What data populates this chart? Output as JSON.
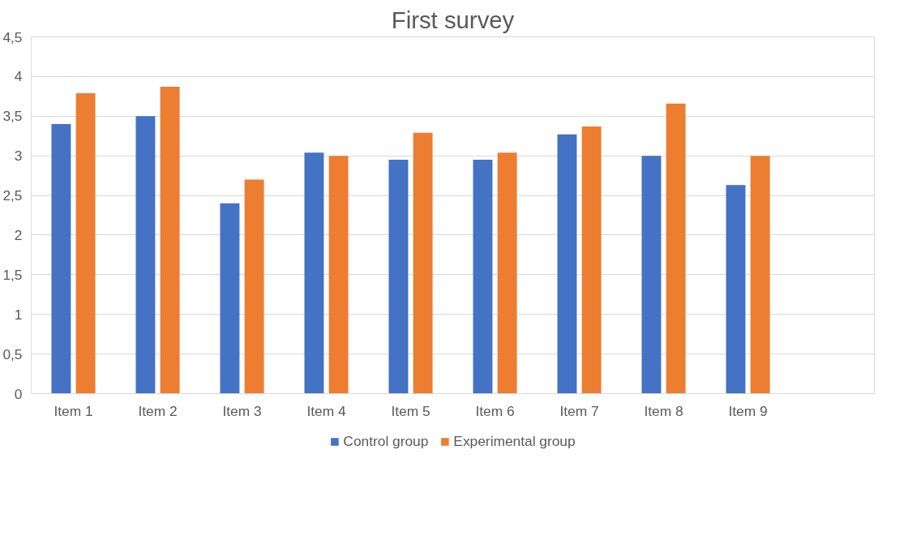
{
  "chart_data": {
    "type": "bar",
    "title": "First survey",
    "categories": [
      "Item 1",
      "Item 2",
      "Item 3",
      "Item 4",
      "Item 5",
      "Item 6",
      "Item 7",
      "Item 8",
      "Item 9",
      null
    ],
    "series": [
      {
        "name": "Control group",
        "color": "#4472c4",
        "values": [
          3.4,
          3.5,
          2.4,
          3.04,
          2.95,
          2.95,
          3.27,
          3.0,
          2.63,
          null
        ]
      },
      {
        "name": "Experimental group",
        "color": "#ed7d31",
        "values": [
          3.79,
          3.87,
          2.7,
          3.0,
          3.29,
          3.04,
          3.37,
          3.66,
          3.0,
          null
        ]
      }
    ],
    "ylim": [
      0,
      4.5
    ],
    "yticks": [
      {
        "value": 0,
        "label": "0"
      },
      {
        "value": 0.5,
        "label": "0,5"
      },
      {
        "value": 1,
        "label": "1"
      },
      {
        "value": 1.5,
        "label": "1,5"
      },
      {
        "value": 2,
        "label": "2"
      },
      {
        "value": 2.5,
        "label": "2,5"
      },
      {
        "value": 3,
        "label": "3"
      },
      {
        "value": 3.5,
        "label": "3,5"
      },
      {
        "value": 4,
        "label": "4"
      },
      {
        "value": 4.5,
        "label": "4,5"
      }
    ],
    "grid": "y",
    "legend": "bottom"
  }
}
